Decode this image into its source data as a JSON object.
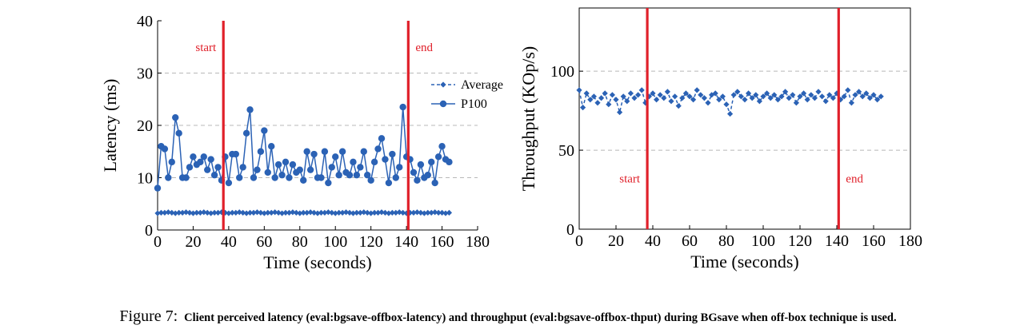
{
  "chart_data": [
    {
      "type": "line",
      "xlabel": "Time (seconds)",
      "ylabel": "Latency (ms)",
      "x": [
        0,
        2,
        4,
        6,
        8,
        10,
        12,
        14,
        16,
        18,
        20,
        22,
        24,
        26,
        28,
        30,
        32,
        34,
        36,
        38,
        40,
        42,
        44,
        46,
        48,
        50,
        52,
        54,
        56,
        58,
        60,
        62,
        64,
        66,
        68,
        70,
        72,
        74,
        76,
        78,
        80,
        82,
        84,
        86,
        88,
        90,
        92,
        94,
        96,
        98,
        100,
        102,
        104,
        106,
        108,
        110,
        112,
        114,
        116,
        118,
        120,
        122,
        124,
        126,
        128,
        130,
        132,
        134,
        136,
        138,
        140,
        142,
        144,
        146,
        148,
        150,
        152,
        154,
        156,
        158,
        160,
        162,
        164
      ],
      "series": [
        {
          "name": "Average",
          "color": "#2b62b5",
          "dash": true,
          "marker": "diamond",
          "values": [
            3.2,
            3.3,
            3.3,
            3.4,
            3.3,
            3.2,
            3.3,
            3.3,
            3.4,
            3.3,
            3.2,
            3.3,
            3.3,
            3.4,
            3.3,
            3.2,
            3.3,
            3.3,
            3.4,
            3.3,
            3.2,
            3.3,
            3.3,
            3.4,
            3.3,
            3.2,
            3.3,
            3.3,
            3.4,
            3.3,
            3.2,
            3.3,
            3.3,
            3.4,
            3.3,
            3.2,
            3.3,
            3.3,
            3.4,
            3.3,
            3.2,
            3.3,
            3.3,
            3.4,
            3.3,
            3.2,
            3.3,
            3.3,
            3.4,
            3.3,
            3.2,
            3.3,
            3.3,
            3.4,
            3.3,
            3.2,
            3.3,
            3.3,
            3.4,
            3.3,
            3.2,
            3.3,
            3.3,
            3.4,
            3.3,
            3.2,
            3.3,
            3.3,
            3.4,
            3.3,
            3.2,
            3.3,
            3.3,
            3.4,
            3.3,
            3.2,
            3.3,
            3.3,
            3.4,
            3.3,
            3.3,
            3.2,
            3.3
          ]
        },
        {
          "name": "P100",
          "color": "#2b62b5",
          "dash": false,
          "marker": "circle",
          "values": [
            8,
            16,
            15.5,
            10,
            13,
            21.5,
            18.5,
            10,
            10,
            12,
            14,
            12.5,
            13,
            14,
            11.5,
            13.5,
            10.5,
            12,
            9.5,
            14,
            9,
            14.5,
            14.5,
            10,
            12,
            18.5,
            23,
            10,
            11.5,
            15,
            19,
            11,
            16,
            10,
            12.5,
            10.5,
            13,
            10,
            12.5,
            11,
            11.5,
            9.5,
            15,
            11.5,
            14.5,
            10,
            10,
            15,
            9,
            12,
            14,
            10.5,
            15,
            11,
            10.5,
            13,
            10.5,
            12,
            15,
            10.5,
            9.5,
            13,
            15.5,
            17.5,
            13.5,
            9,
            14.5,
            10,
            12,
            23.5,
            14,
            13.5,
            11,
            9.5,
            12.5,
            10,
            10.5,
            13,
            9,
            14,
            16,
            13.5,
            13
          ]
        }
      ],
      "xlim": [
        0,
        180
      ],
      "ylim": [
        0,
        40
      ],
      "xticks": [
        0,
        20,
        40,
        60,
        80,
        100,
        120,
        140,
        160,
        180
      ],
      "yticks": [
        0,
        10,
        20,
        30,
        40
      ],
      "grid": true,
      "legend": "upper right",
      "vlines": [
        {
          "x": 37,
          "label": "start"
        },
        {
          "x": 141,
          "label": "end"
        }
      ],
      "vline_color": "#e0202a"
    },
    {
      "type": "line",
      "xlabel": "Time (seconds)",
      "ylabel": "Throughput (KOp/s)",
      "x": [
        0,
        2,
        4,
        6,
        8,
        10,
        12,
        14,
        16,
        18,
        20,
        22,
        24,
        26,
        28,
        30,
        32,
        34,
        36,
        38,
        40,
        42,
        44,
        46,
        48,
        50,
        52,
        54,
        56,
        58,
        60,
        62,
        64,
        66,
        68,
        70,
        72,
        74,
        76,
        78,
        80,
        82,
        84,
        86,
        88,
        90,
        92,
        94,
        96,
        98,
        100,
        102,
        104,
        106,
        108,
        110,
        112,
        114,
        116,
        118,
        120,
        122,
        124,
        126,
        128,
        130,
        132,
        134,
        136,
        138,
        140,
        142,
        144,
        146,
        148,
        150,
        152,
        154,
        156,
        158,
        160,
        162,
        164
      ],
      "series": [
        {
          "color": "#2b62b5",
          "dash": true,
          "marker": "diamond",
          "values": [
            88,
            77,
            86,
            82,
            84,
            80,
            83,
            86,
            79,
            85,
            82,
            74,
            84,
            81,
            86,
            83,
            85,
            88,
            80,
            84,
            86,
            82,
            85,
            83,
            87,
            81,
            84,
            78,
            83,
            86,
            84,
            82,
            88,
            85,
            83,
            80,
            85,
            86,
            82,
            84,
            79,
            73,
            85,
            87,
            84,
            82,
            86,
            83,
            85,
            81,
            84,
            86,
            83,
            85,
            82,
            84,
            87,
            83,
            85,
            80,
            84,
            86,
            82,
            85,
            83,
            87,
            84,
            81,
            85,
            83,
            86,
            82,
            84,
            88,
            80,
            85,
            87,
            84,
            86,
            83,
            85,
            82,
            84
          ]
        }
      ],
      "xlim": [
        0,
        180
      ],
      "ylim": [
        0,
        140
      ],
      "xticks": [
        0,
        20,
        40,
        60,
        80,
        100,
        120,
        140,
        160,
        180
      ],
      "yticks": [
        0,
        50,
        100
      ],
      "grid": true,
      "vlines": [
        {
          "x": 37,
          "label": "start"
        },
        {
          "x": 141,
          "label": "end"
        }
      ],
      "vline_color": "#e0202a"
    }
  ],
  "caption": {
    "label": "Figure 7:",
    "text": "Client perceived latency (eval:bgsave-offbox-latency) and throughput (eval:bgsave-offbox-thput) during BGsave when off-box technique is used."
  }
}
